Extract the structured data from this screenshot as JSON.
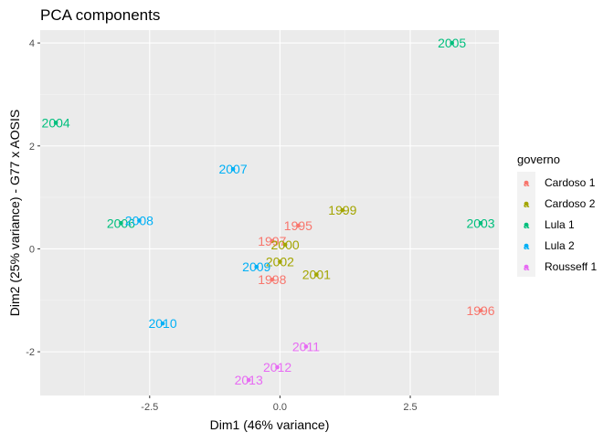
{
  "chart_data": {
    "type": "scatter",
    "title": "PCA components",
    "xlabel": "Dim1 (46% variance)",
    "ylabel": "Dim2 (25% variance) - G77 x AOSIS",
    "xlim": [
      -4.6,
      4.2
    ],
    "ylim": [
      -2.85,
      4.25
    ],
    "x_ticks": [
      -2.5,
      0.0,
      2.5
    ],
    "x_tick_labels": [
      "-2.5",
      "0.0",
      "2.5"
    ],
    "y_ticks": [
      -2,
      0,
      2,
      4
    ],
    "y_tick_labels": [
      "-2",
      "0",
      "2",
      "4"
    ],
    "grid": true,
    "legend_position": "right",
    "legend_title": "governo",
    "series": [
      {
        "name": "Cardoso 1",
        "color": "#F8766D",
        "points": [
          {
            "label": "1995",
            "x": 0.35,
            "y": 0.45
          },
          {
            "label": "1996",
            "x": 3.85,
            "y": -1.2
          },
          {
            "label": "1997",
            "x": -0.15,
            "y": 0.15
          },
          {
            "label": "1998",
            "x": -0.15,
            "y": -0.6
          }
        ]
      },
      {
        "name": "Cardoso 2",
        "color": "#A3A500",
        "points": [
          {
            "label": "1999",
            "x": 1.2,
            "y": 0.75
          },
          {
            "label": "2000",
            "x": 0.1,
            "y": 0.08
          },
          {
            "label": "2001",
            "x": 0.7,
            "y": -0.5
          },
          {
            "label": "2002",
            "x": 0.0,
            "y": -0.25
          }
        ]
      },
      {
        "name": "Lula 1",
        "color": "#00BF7D",
        "points": [
          {
            "label": "2003",
            "x": 3.85,
            "y": 0.5
          },
          {
            "label": "2004",
            "x": -4.3,
            "y": 2.45
          },
          {
            "label": "2005",
            "x": 3.3,
            "y": 4.0
          },
          {
            "label": "2006",
            "x": -3.05,
            "y": 0.5
          }
        ]
      },
      {
        "name": "Lula 2",
        "color": "#00B0F6",
        "points": [
          {
            "label": "2007",
            "x": -0.9,
            "y": 1.55
          },
          {
            "label": "2008",
            "x": -2.7,
            "y": 0.55
          },
          {
            "label": "2009",
            "x": -0.45,
            "y": -0.35
          },
          {
            "label": "2010",
            "x": -2.25,
            "y": -1.45
          }
        ]
      },
      {
        "name": "Rousseff 1",
        "color": "#E76BF3",
        "points": [
          {
            "label": "2011",
            "x": 0.5,
            "y": -1.9
          },
          {
            "label": "2012",
            "x": -0.05,
            "y": -2.3
          },
          {
            "label": "2013",
            "x": -0.6,
            "y": -2.55
          }
        ]
      }
    ]
  }
}
